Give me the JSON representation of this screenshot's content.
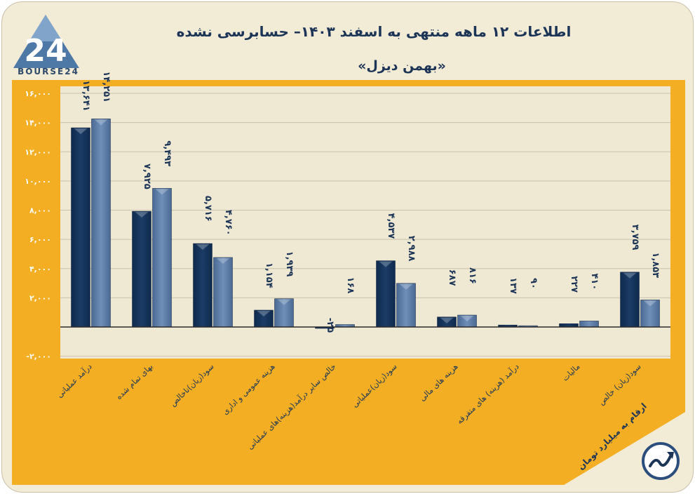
{
  "title": "اطلاعات ۱۲ ماهه منتهی به اسفند ۱۴۰۳– حسابرسی نشده",
  "subtitle": "«بهمن دیزل»",
  "logo": {
    "text": "BOURSE24",
    "mark": "24"
  },
  "note": "ارقام به میلیارد تومان",
  "icons": {
    "logo": "bourse24-logo-icon",
    "badge": "trend-arrow-icon"
  },
  "colors": {
    "series1": "#1b3c66",
    "series2": "#6f8fb8",
    "accent": "#f4ae23",
    "plot_bg": "#efe9d4"
  },
  "chart_data": {
    "type": "bar",
    "categories": [
      "درآمد عملیاتی",
      "بهای تمام شده",
      "سود(زیان)ناخالص",
      "هزینه عمومی و اداری",
      "خالص سایر درآمد(هزینه)های عملیاتی",
      "سود(زیان)عملیاتی",
      "هزینه های مالی",
      "درآمد (هزینه) های متفرقه",
      "مالیات",
      "سود(زیان) خالص"
    ],
    "series": [
      {
        "values": [
          13641,
          7925,
          5716,
          1154,
          -25,
          4537,
          687,
          137,
          227,
          3759
        ],
        "labels": [
          "۱۳,۶۴۱",
          "۷,۹۲۵",
          "۵,۷۱۶",
          "۱,۱۵۴",
          "-۲۵",
          "۴,۵۳۷",
          "۶۸۷",
          "۱۳۷",
          "۲۲۷",
          "۳,۷۵۹"
        ]
      },
      {
        "values": [
          14251,
          9493,
          4760,
          1939,
          168,
          2988,
          816,
          90,
          410,
          1853
        ],
        "labels": [
          "۱۴,۲۵۱",
          "۹,۴۹۳",
          "۴,۷۶۰",
          "۱,۹۳۹",
          "۱۶۸",
          "۲,۹۸۸",
          "۸۱۶",
          "۹۰",
          "۴۱۰",
          "۱,۸۵۳"
        ]
      }
    ],
    "yticks": [
      16000,
      14000,
      12000,
      10000,
      8000,
      6000,
      4000,
      2000,
      -2000
    ],
    "ytick_labels": [
      "۱۶,۰۰۰",
      "۱۴,۰۰۰",
      "۱۲,۰۰۰",
      "۱۰,۰۰۰",
      "۸,۰۰۰",
      "۶,۰۰۰",
      "۴,۰۰۰",
      "۲,۰۰۰",
      "-۲,۰۰۰"
    ],
    "ylim": [
      -2000,
      16000
    ],
    "grid": true
  }
}
